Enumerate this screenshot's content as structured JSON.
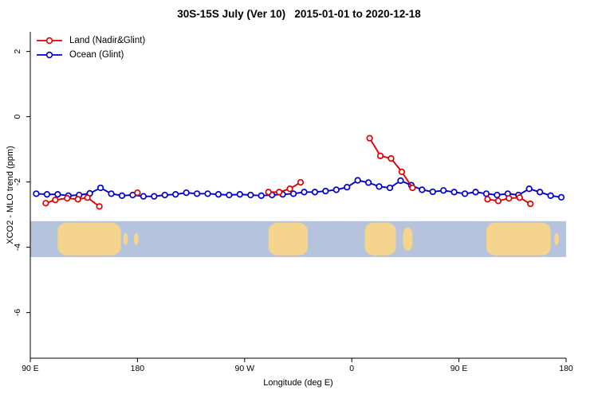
{
  "chart_data": {
    "type": "line",
    "title": "30S-15S July (Ver 10)   2015-01-01 to 2020-12-18",
    "xlabel": "Longitude (deg E)",
    "ylabel": "XCO2 - MLO trend (ppm)",
    "xlim": [
      90,
      540
    ],
    "ylim": [
      -7.4,
      2.6
    ],
    "grid": false,
    "legend_position": "top-left",
    "x_ticks": [
      {
        "pos": 90,
        "label": "90 E"
      },
      {
        "pos": 180,
        "label": "180"
      },
      {
        "pos": 270,
        "label": "90 W"
      },
      {
        "pos": 360,
        "label": "0"
      },
      {
        "pos": 450,
        "label": "90 E"
      },
      {
        "pos": 540,
        "label": "180"
      }
    ],
    "y_ticks": [
      {
        "pos": 2,
        "label": "2"
      },
      {
        "pos": 0,
        "label": "0"
      },
      {
        "pos": -2,
        "label": "-2"
      },
      {
        "pos": -4,
        "label": "-4"
      },
      {
        "pos": -6,
        "label": "-6"
      }
    ],
    "legend": [
      {
        "label": "Land (Nadir&Glint)",
        "color": "#dd0000"
      },
      {
        "label": "Ocean (Glint)",
        "color": "#0000cc"
      }
    ],
    "series": [
      {
        "name": "Ocean (Glint)",
        "color": "#0000cc",
        "segments": [
          {
            "x": [
              95,
              104,
              113,
              122,
              131,
              140,
              149,
              158,
              167,
              176,
              185,
              194,
              203,
              212,
              221,
              230,
              239,
              248,
              257,
              266,
              275,
              284,
              293,
              302,
              311,
              320,
              329,
              338,
              347,
              356,
              365,
              374,
              383,
              392,
              401,
              410,
              419,
              428,
              437,
              446,
              455,
              464,
              473,
              482,
              491,
              500,
              509,
              518,
              527,
              536
            ],
            "y": [
              -2.36,
              -2.38,
              -2.38,
              -2.42,
              -2.4,
              -2.35,
              -2.18,
              -2.36,
              -2.42,
              -2.4,
              -2.44,
              -2.44,
              -2.4,
              -2.38,
              -2.33,
              -2.36,
              -2.36,
              -2.38,
              -2.4,
              -2.38,
              -2.4,
              -2.42,
              -2.4,
              -2.38,
              -2.36,
              -2.31,
              -2.31,
              -2.28,
              -2.24,
              -2.16,
              -1.95,
              -2.02,
              -2.14,
              -2.18,
              -1.96,
              -2.1,
              -2.24,
              -2.3,
              -2.26,
              -2.31,
              -2.36,
              -2.31,
              -2.36,
              -2.4,
              -2.36,
              -2.4,
              -2.21,
              -2.31,
              -2.42,
              -2.47
            ]
          }
        ]
      },
      {
        "name": "Land (Nadir&Glint)",
        "color": "#dd0000",
        "segments": [
          {
            "x": [
              103,
              111,
              121,
              130,
              138,
              148
            ],
            "y": [
              -2.65,
              -2.55,
              -2.5,
              -2.53,
              -2.48,
              -2.75
            ]
          },
          {
            "x": [
              180
            ],
            "y": [
              -2.33
            ]
          },
          {
            "x": [
              290,
              299,
              308,
              317
            ],
            "y": [
              -2.31,
              -2.31,
              -2.21,
              -2.01
            ]
          },
          {
            "x": [
              375,
              384,
              393,
              402,
              411
            ],
            "y": [
              -0.66,
              -1.2,
              -1.28,
              -1.69,
              -2.18
            ]
          },
          {
            "x": [
              474,
              483,
              492,
              501,
              510
            ],
            "y": [
              -2.53,
              -2.58,
              -2.5,
              -2.48,
              -2.67
            ]
          }
        ]
      }
    ],
    "map_band": {
      "y_top": -3.2,
      "y_bottom": -4.3,
      "ocean_color": "#b5c3dd",
      "land_color": "#f5d58e",
      "land_regions": [
        {
          "x0": 113,
          "x1": 166,
          "size": "full",
          "note": "Australia"
        },
        {
          "x0": 168,
          "x1": 172,
          "size": "small",
          "note": "island"
        },
        {
          "x0": 177,
          "x1": 181,
          "size": "small",
          "note": "island"
        },
        {
          "x0": 290,
          "x1": 323,
          "size": "full",
          "note": "South America"
        },
        {
          "x0": 371,
          "x1": 397,
          "size": "full",
          "note": "Southern Africa"
        },
        {
          "x0": 403,
          "x1": 411,
          "size": "half",
          "note": "Madagascar"
        },
        {
          "x0": 473,
          "x1": 527,
          "size": "full",
          "note": "Australia"
        },
        {
          "x0": 530,
          "x1": 534,
          "size": "small",
          "note": "island"
        }
      ]
    }
  }
}
